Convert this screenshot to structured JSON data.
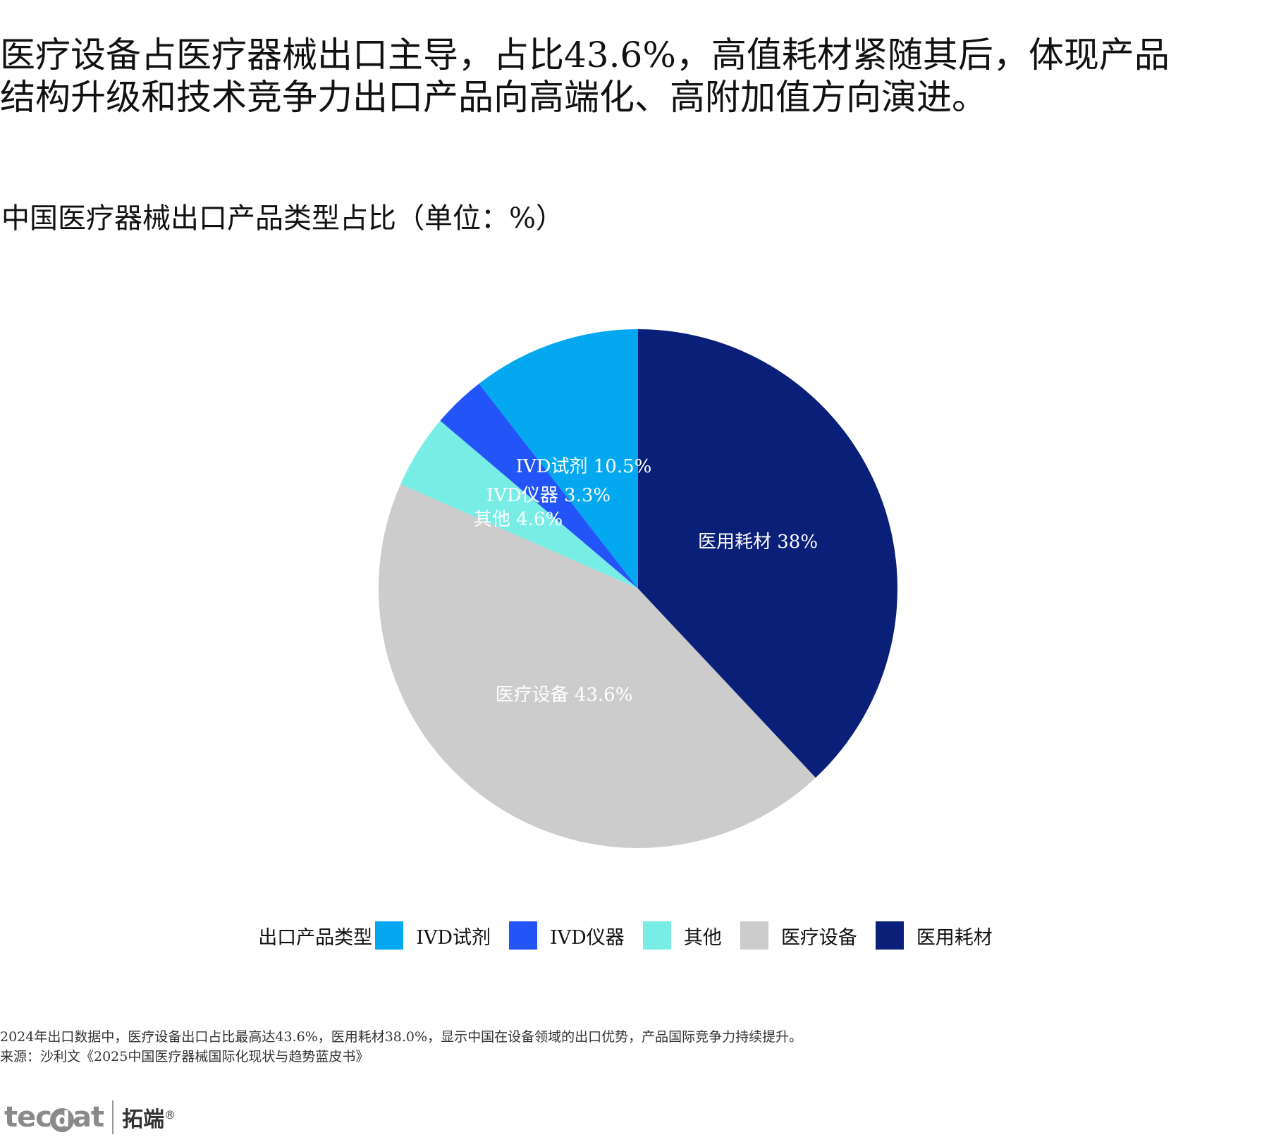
{
  "headline": {
    "line1": "医疗设备占医疗器械出口主导，占比43.6%，高值耗材紧随其后，体现产品",
    "line2": "结构升级和技术竞争力出口产品向高端化、高附加值方向演进。"
  },
  "chart_data": {
    "type": "pie",
    "title": "中国医疗器械出口产品类型占比（单位：%）",
    "unit": "%",
    "start": "12 o'clock",
    "direction": "clockwise",
    "slices": [
      {
        "name": "医用耗材",
        "value": 38.0,
        "label": "医用耗材 38%",
        "color": "#0a1f78"
      },
      {
        "name": "医疗设备",
        "value": 43.6,
        "label": "医疗设备 43.6%",
        "color": "#cccccc"
      },
      {
        "name": "其他",
        "value": 4.6,
        "label": "其他 4.6%",
        "color": "#77ede6"
      },
      {
        "name": "IVD仪器",
        "value": 3.3,
        "label": "IVD仪器 3.3%",
        "color": "#2354f7"
      },
      {
        "name": "IVD试剂",
        "value": 10.5,
        "label": "IVD试剂 10.5%",
        "color": "#03a8f0"
      }
    ],
    "legend": {
      "title": "出口产品类型",
      "placement": "bottom",
      "items": [
        {
          "name": "IVD试剂",
          "color": "#03a8f0"
        },
        {
          "name": "IVD仪器",
          "color": "#2354f7"
        },
        {
          "name": "其他",
          "color": "#77ede6"
        },
        {
          "name": "医疗设备",
          "color": "#cccccc"
        },
        {
          "name": "医用耗材",
          "color": "#0a1f78"
        }
      ]
    }
  },
  "notes": {
    "summary": "2024年出口数据中，医疗设备出口占比最高达43.6%，医用耗材38.0%，显示中国在设备领域的出口优势，产品国际竞争力持续提升。",
    "source": "来源：沙利文《2025中国医疗器械国际化现状与趋势蓝皮书》"
  },
  "logo": {
    "mark": "tecdat",
    "cn": "拓端",
    "reg": "®"
  }
}
